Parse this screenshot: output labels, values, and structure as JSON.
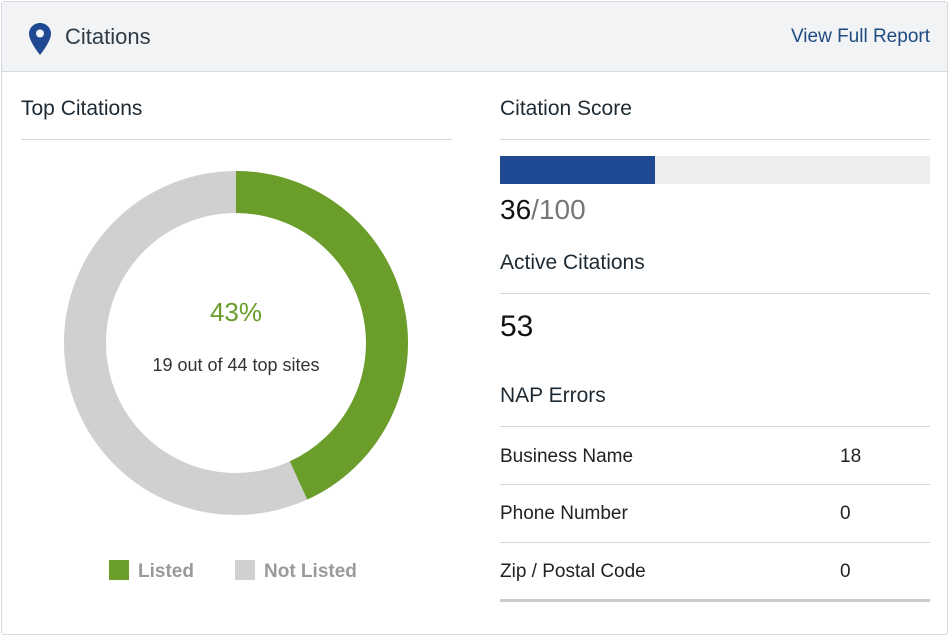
{
  "header": {
    "title": "Citations",
    "link": "View Full Report",
    "icon": "map-pin-icon"
  },
  "top_citations": {
    "title": "Top Citations",
    "percent": "43%",
    "subtitle": "19 out of 44 top sites",
    "listed_fraction": 0.432,
    "legend": [
      {
        "label": "Listed",
        "color": "#6a9d2a"
      },
      {
        "label": "Not Listed",
        "color": "#d0d0d0"
      }
    ]
  },
  "citation_score": {
    "title": "Citation Score",
    "score": "36",
    "max": "/100",
    "fill_fraction": 0.36,
    "bar_color": "#1f4a93"
  },
  "active_citations": {
    "title": "Active Citations",
    "value": "53"
  },
  "nap_errors": {
    "title": "NAP Errors",
    "rows": [
      {
        "label": "Business Name",
        "value": "18"
      },
      {
        "label": "Phone Number",
        "value": "0"
      },
      {
        "label": "Zip / Postal Code",
        "value": "0"
      }
    ]
  }
}
